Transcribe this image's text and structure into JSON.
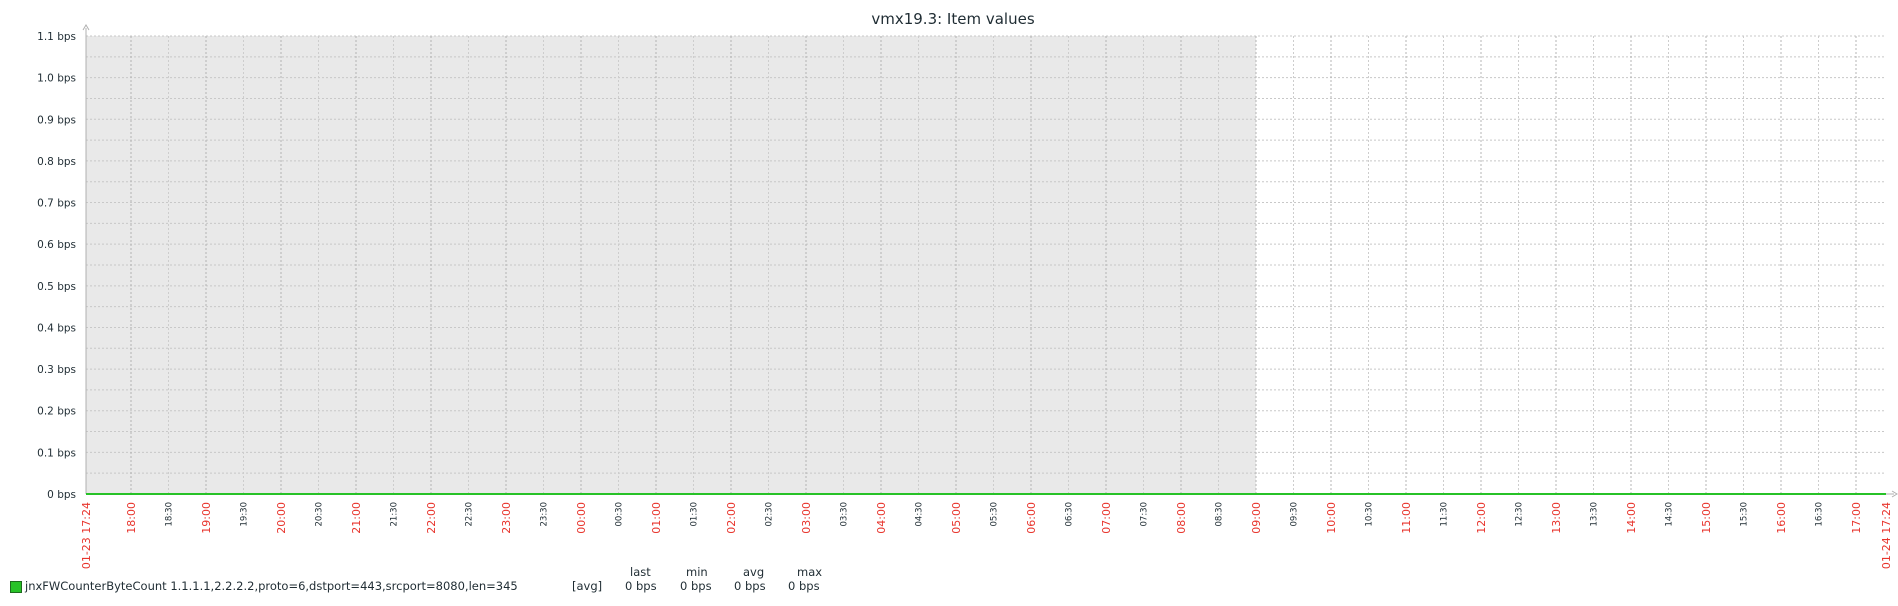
{
  "chart_data": {
    "type": "line",
    "title": "vmx19.3: Item values",
    "y_ticks": [
      "0 bps",
      "0.1 bps",
      "0.2 bps",
      "0.3 bps",
      "0.4 bps",
      "0.5 bps",
      "0.6 bps",
      "0.7 bps",
      "0.8 bps",
      "0.9 bps",
      "1.0 bps",
      "1.1 bps"
    ],
    "ylim": [
      0,
      1.1
    ],
    "y_unit": "bps",
    "x_range": [
      "01-23 17:24",
      "01-24 17:24"
    ],
    "x_ticks": [
      {
        "label": "01-23 17:24",
        "major": true
      },
      {
        "label": "18:00",
        "major": true
      },
      {
        "label": "18:30",
        "major": false
      },
      {
        "label": "19:00",
        "major": true
      },
      {
        "label": "19:30",
        "major": false
      },
      {
        "label": "20:00",
        "major": true
      },
      {
        "label": "20:30",
        "major": false
      },
      {
        "label": "21:00",
        "major": true
      },
      {
        "label": "21:30",
        "major": false
      },
      {
        "label": "22:00",
        "major": true
      },
      {
        "label": "22:30",
        "major": false
      },
      {
        "label": "23:00",
        "major": true
      },
      {
        "label": "23:30",
        "major": false
      },
      {
        "label": "00:00",
        "major": true
      },
      {
        "label": "00:30",
        "major": false
      },
      {
        "label": "01:00",
        "major": true
      },
      {
        "label": "01:30",
        "major": false
      },
      {
        "label": "02:00",
        "major": true
      },
      {
        "label": "02:30",
        "major": false
      },
      {
        "label": "03:00",
        "major": true
      },
      {
        "label": "03:30",
        "major": false
      },
      {
        "label": "04:00",
        "major": true
      },
      {
        "label": "04:30",
        "major": false
      },
      {
        "label": "05:00",
        "major": true
      },
      {
        "label": "05:30",
        "major": false
      },
      {
        "label": "06:00",
        "major": true
      },
      {
        "label": "06:30",
        "major": false
      },
      {
        "label": "07:00",
        "major": true
      },
      {
        "label": "07:30",
        "major": false
      },
      {
        "label": "08:00",
        "major": true
      },
      {
        "label": "08:30",
        "major": false
      },
      {
        "label": "09:00",
        "major": true
      },
      {
        "label": "09:30",
        "major": false
      },
      {
        "label": "10:00",
        "major": true
      },
      {
        "label": "10:30",
        "major": false
      },
      {
        "label": "11:00",
        "major": true
      },
      {
        "label": "11:30",
        "major": false
      },
      {
        "label": "12:00",
        "major": true
      },
      {
        "label": "12:30",
        "major": false
      },
      {
        "label": "13:00",
        "major": true
      },
      {
        "label": "13:30",
        "major": false
      },
      {
        "label": "14:00",
        "major": true
      },
      {
        "label": "14:30",
        "major": false
      },
      {
        "label": "15:00",
        "major": true
      },
      {
        "label": "15:30",
        "major": false
      },
      {
        "label": "16:00",
        "major": true
      },
      {
        "label": "16:30",
        "major": false
      },
      {
        "label": "17:00",
        "major": true
      },
      {
        "label": "01-24 17:24",
        "major": true
      }
    ],
    "shaded_period": {
      "from": "01-23 17:24",
      "to": "09:00"
    },
    "grid": true,
    "series": [
      {
        "name": "jnxFWCounterByteCount 1.1.1.1,2.2.2.2,proto=6,dstport=443,srcport=8080,len=345",
        "color": "#27c227",
        "x": [
          "01-23 17:24",
          "01-24 17:24"
        ],
        "values": [
          0,
          0
        ]
      }
    ]
  },
  "legend": {
    "headers": {
      "last": "last",
      "min": "min",
      "avg": "avg",
      "max": "max"
    },
    "items": [
      {
        "name": "jnxFWCounterByteCount 1.1.1.1,2.2.2.2,proto=6,dstport=443,srcport=8080,len=345",
        "func": "[avg]",
        "last": "0 bps",
        "min": "0 bps",
        "avg": "0 bps",
        "max": "0 bps",
        "color": "#27c227"
      }
    ]
  }
}
